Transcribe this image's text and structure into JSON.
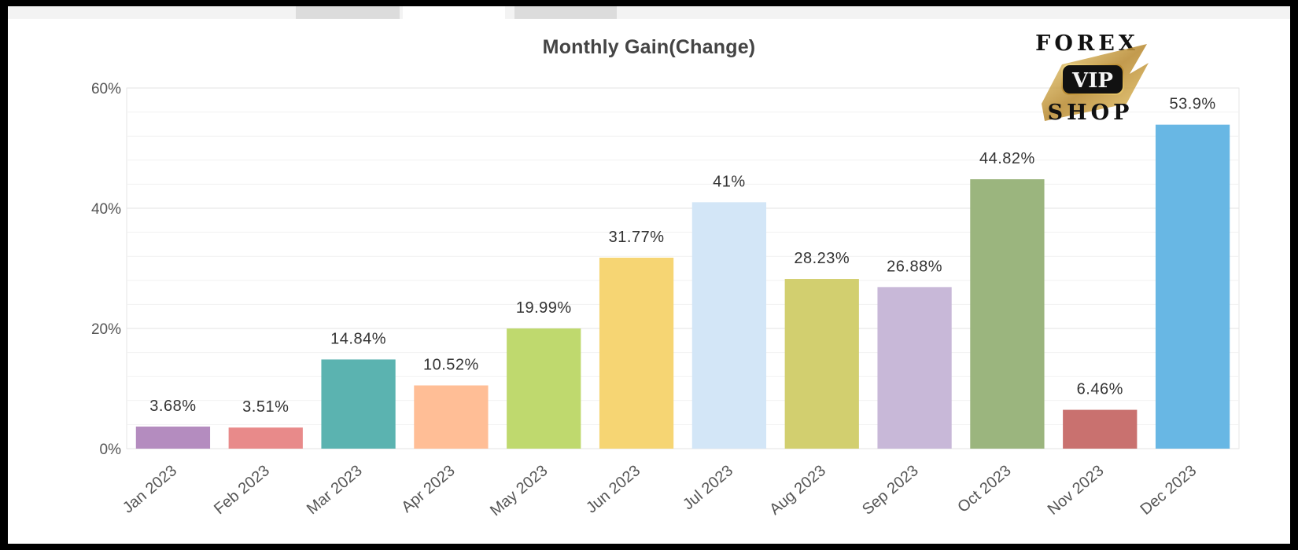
{
  "chart_data": {
    "type": "bar",
    "title": "Monthly Gain(Change)",
    "categories": [
      "Jan 2023",
      "Feb 2023",
      "Mar 2023",
      "Apr 2023",
      "May 2023",
      "Jun 2023",
      "Jul 2023",
      "Aug 2023",
      "Sep 2023",
      "Oct 2023",
      "Nov 2023",
      "Dec 2023"
    ],
    "values": [
      3.68,
      3.51,
      14.84,
      10.52,
      19.99,
      31.77,
      41,
      28.23,
      26.88,
      44.82,
      6.46,
      53.9
    ],
    "value_labels": [
      "3.68%",
      "3.51%",
      "14.84%",
      "10.52%",
      "19.99%",
      "31.77%",
      "41%",
      "28.23%",
      "26.88%",
      "44.82%",
      "6.46%",
      "53.9%"
    ],
    "colors": [
      "#b48cbf",
      "#e88a8a",
      "#5bb3b0",
      "#ffbe96",
      "#bfd96e",
      "#f6d573",
      "#d3e6f7",
      "#d2cf6f",
      "#c8b8d8",
      "#9bb57e",
      "#c9716f",
      "#68b7e4"
    ],
    "yticks": [
      "0%",
      "20%",
      "40%",
      "60%"
    ],
    "ylim": [
      0,
      60
    ],
    "xlabel": "",
    "ylabel": "",
    "grid": true,
    "legend": "none"
  },
  "logo": {
    "line1": "FOREX",
    "line2": "VIP",
    "line3": "SHOP"
  }
}
